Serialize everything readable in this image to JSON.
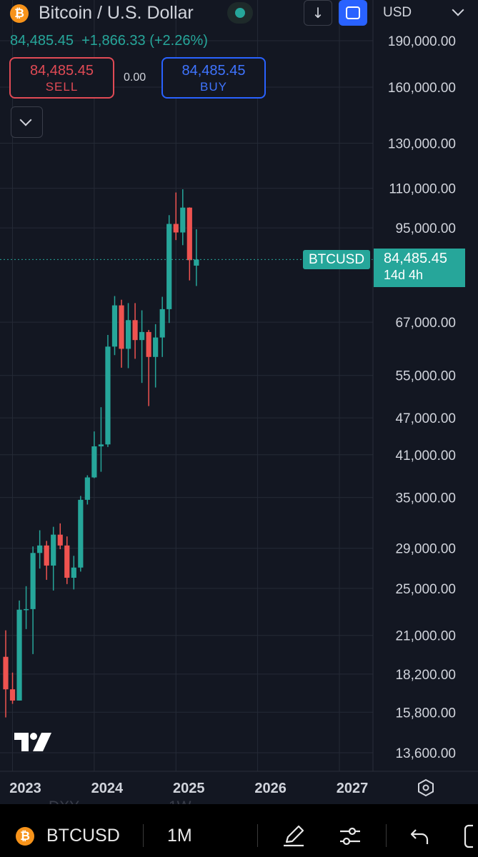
{
  "header": {
    "title": "Bitcoin / U.S. Dollar",
    "price": "84,485.45",
    "change": "+1,866.33",
    "change_pct": "(+2.26%)",
    "sell_price": "84,485.45",
    "sell_label": "SELL",
    "spread": "0.00",
    "buy_price": "84,485.45",
    "buy_label": "BUY",
    "down_arrow": "↓",
    "btc_glyph": "₿"
  },
  "currency_select": {
    "value": "USD"
  },
  "price_tag": {
    "symbol": "BTCUSD",
    "price": "84,485.45",
    "countdown": "14d 4h"
  },
  "colors": {
    "up": "#26a69a",
    "down": "#ef5350",
    "background": "#131722",
    "grid": "#252a36",
    "accent": "#2962ff"
  },
  "icons": [
    "bitcoin-icon",
    "download-icon",
    "fullscreen-icon",
    "chevron-down-icon",
    "settings-hexagon-icon",
    "tradingview-logo",
    "draw-pen-icon",
    "sliders-icon",
    "undo-icon"
  ],
  "bottom_bar": {
    "symbol": "BTCUSD",
    "interval": "1M"
  },
  "ghost_labels": [
    "DXY",
    "1W"
  ],
  "chart_data": {
    "type": "candlestick",
    "interval": "1M",
    "scale": "log",
    "y_tick_labels": [
      "190,000.00",
      "160,000.00",
      "130,000.00",
      "110,000.00",
      "95,000.00",
      "67,000.00",
      "55,000.00",
      "47,000.00",
      "41,000.00",
      "35,000.00",
      "29,000.00",
      "25,000.00",
      "21,000.00",
      "18,200.00",
      "15,800.00",
      "13,600.00"
    ],
    "y_ticks": [
      190000,
      160000,
      130000,
      110000,
      95000,
      67000,
      55000,
      47000,
      41000,
      35000,
      29000,
      25000,
      21000,
      18200,
      15800,
      13600
    ],
    "x_tick_labels": [
      "2023",
      "2024",
      "2025",
      "2026",
      "2027"
    ],
    "current_price": 84485.45,
    "candles": [
      {
        "o": 19400,
        "h": 21400,
        "l": 15500,
        "c": 17200
      },
      {
        "o": 17200,
        "h": 18300,
        "l": 16300,
        "c": 16500
      },
      {
        "o": 16500,
        "h": 23900,
        "l": 16500,
        "c": 23100
      },
      {
        "o": 23100,
        "h": 25200,
        "l": 21500,
        "c": 23150
      },
      {
        "o": 23150,
        "h": 29200,
        "l": 19600,
        "c": 28500
      },
      {
        "o": 28500,
        "h": 31000,
        "l": 26900,
        "c": 29300
      },
      {
        "o": 29300,
        "h": 29800,
        "l": 25800,
        "c": 27200
      },
      {
        "o": 27200,
        "h": 31400,
        "l": 24800,
        "c": 30500
      },
      {
        "o": 30500,
        "h": 31800,
        "l": 28900,
        "c": 29300
      },
      {
        "o": 29300,
        "h": 30300,
        "l": 25400,
        "c": 26000
      },
      {
        "o": 26000,
        "h": 28200,
        "l": 24900,
        "c": 27000
      },
      {
        "o": 27000,
        "h": 35200,
        "l": 26600,
        "c": 34700
      },
      {
        "o": 34700,
        "h": 38000,
        "l": 34100,
        "c": 37700
      },
      {
        "o": 37700,
        "h": 44700,
        "l": 37600,
        "c": 42300
      },
      {
        "o": 42300,
        "h": 48900,
        "l": 38500,
        "c": 42600
      },
      {
        "o": 42600,
        "h": 63900,
        "l": 42200,
        "c": 61200
      },
      {
        "o": 61200,
        "h": 73800,
        "l": 59300,
        "c": 71300
      },
      {
        "o": 71300,
        "h": 72800,
        "l": 56600,
        "c": 60700
      },
      {
        "o": 60700,
        "h": 71900,
        "l": 56500,
        "c": 67500
      },
      {
        "o": 67500,
        "h": 71900,
        "l": 58500,
        "c": 62700
      },
      {
        "o": 62700,
        "h": 70000,
        "l": 53500,
        "c": 64600
      },
      {
        "o": 64600,
        "h": 65100,
        "l": 49100,
        "c": 58900
      },
      {
        "o": 58900,
        "h": 66500,
        "l": 52600,
        "c": 63300
      },
      {
        "o": 63300,
        "h": 73600,
        "l": 58900,
        "c": 70300
      },
      {
        "o": 70300,
        "h": 99600,
        "l": 66800,
        "c": 96400
      },
      {
        "o": 96400,
        "h": 108300,
        "l": 90800,
        "c": 93400
      },
      {
        "o": 93400,
        "h": 109600,
        "l": 89100,
        "c": 102400
      },
      {
        "o": 102400,
        "h": 102500,
        "l": 78200,
        "c": 84300
      },
      {
        "o": 82600,
        "h": 94500,
        "l": 76600,
        "c": 84485
      }
    ]
  }
}
